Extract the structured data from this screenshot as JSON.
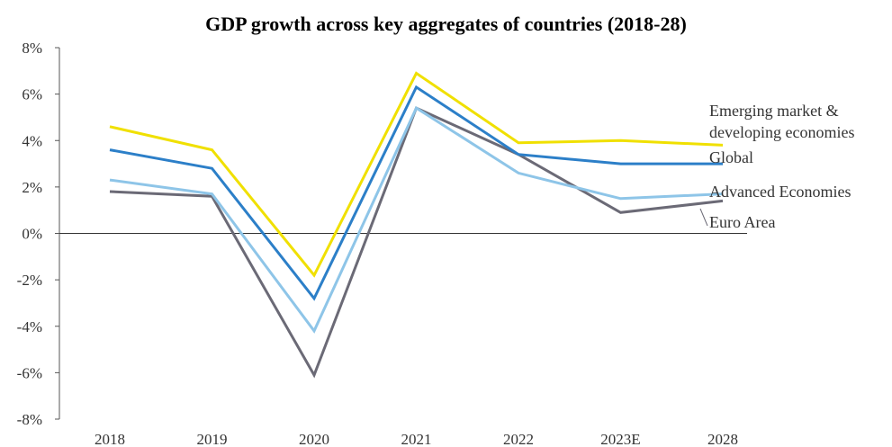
{
  "chart_data": {
    "type": "line",
    "title": "GDP growth across key aggregates of countries (2018-28)",
    "xlabel": "",
    "ylabel": "",
    "categories": [
      "2018",
      "2019",
      "2020",
      "2021",
      "2022",
      "2023E",
      "2028"
    ],
    "ylim": [
      -8,
      8
    ],
    "yticks": [
      "8%",
      "6%",
      "4%",
      "2%",
      "0%",
      "-2%",
      "-4%",
      "-6%",
      "-8%"
    ],
    "grid": false,
    "legend": "right, labels placed at line ends",
    "series": [
      {
        "name": "Emerging market & developing economies",
        "name_lines": [
          "Emerging market &",
          "developing economies"
        ],
        "color": "#f0e000",
        "values": [
          4.6,
          3.6,
          -1.8,
          6.9,
          3.9,
          4.0,
          3.8
        ]
      },
      {
        "name": "Global",
        "name_lines": [
          "Global"
        ],
        "color": "#2c7fc8",
        "values": [
          3.6,
          2.8,
          -2.8,
          6.3,
          3.4,
          3.0,
          3.0
        ]
      },
      {
        "name": "Advanced Economies",
        "name_lines": [
          "Advanced Economies"
        ],
        "color": "#8ec5e8",
        "values": [
          2.3,
          1.7,
          -4.2,
          5.4,
          2.6,
          1.5,
          1.7
        ]
      },
      {
        "name": "Euro Area",
        "name_lines": [
          "Euro Area"
        ],
        "color": "#6b6a76",
        "values": [
          1.8,
          1.6,
          -6.1,
          5.4,
          3.4,
          0.9,
          1.4
        ]
      }
    ]
  }
}
